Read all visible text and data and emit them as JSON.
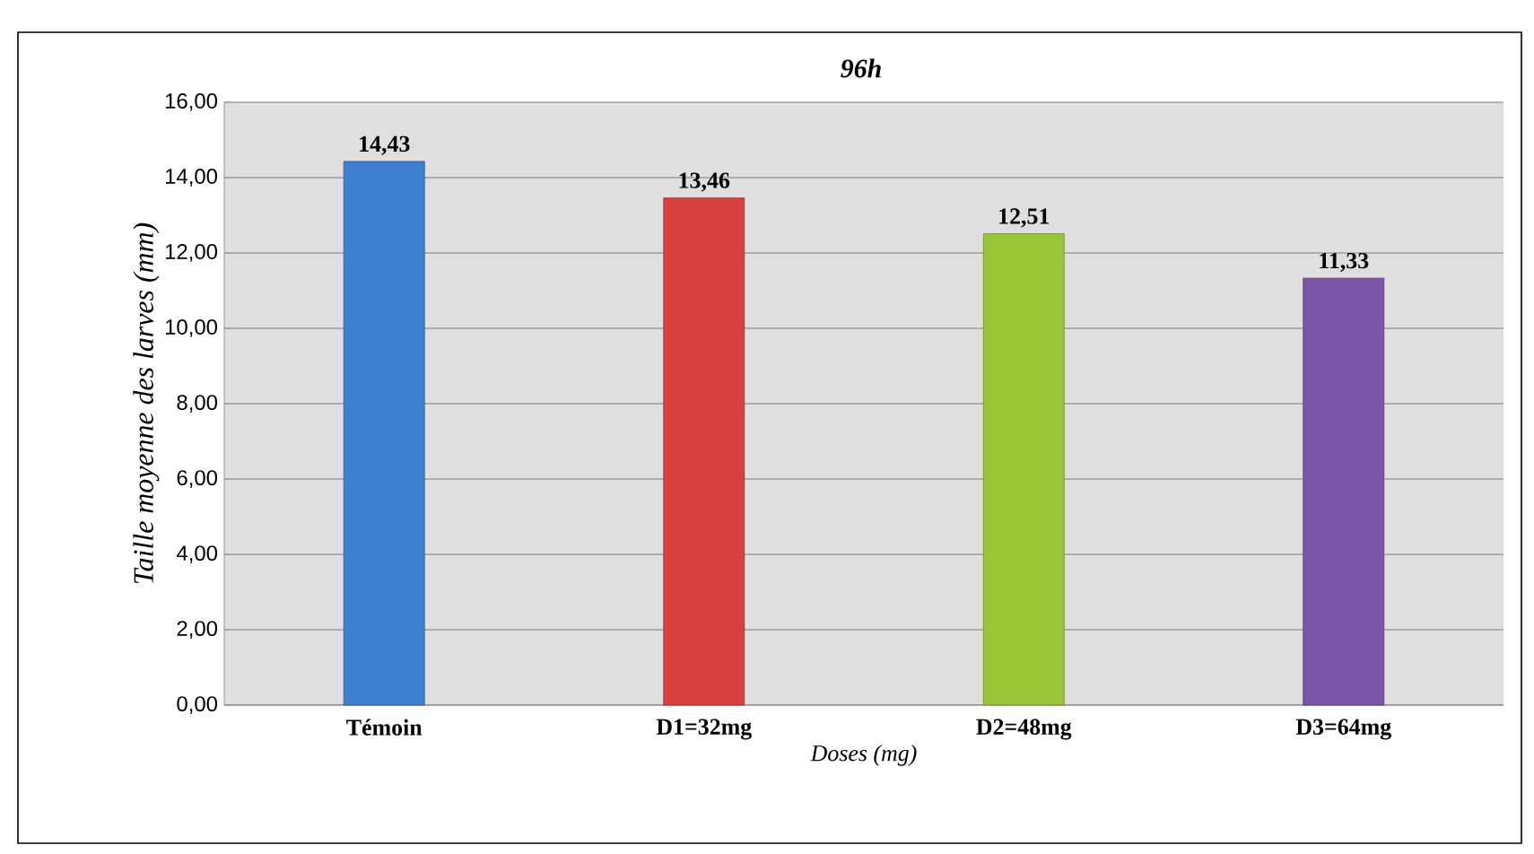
{
  "chart_data": {
    "type": "bar",
    "title": "96h",
    "xlabel": "Doses (mg)",
    "ylabel": "Taille moyenne des larves (mm)",
    "categories": [
      "Témoin",
      "D1=32mg",
      "D2=48mg",
      "D3=64mg"
    ],
    "values": [
      14.43,
      13.46,
      12.51,
      11.33
    ],
    "colors": [
      "#3f7fd0",
      "#d94040",
      "#9bc63a",
      "#7b55a8"
    ],
    "value_labels": [
      "14,43",
      "13,46",
      "12,51",
      "11,33"
    ],
    "ylim": [
      0,
      16
    ],
    "yticks": [
      {
        "value": 0,
        "label": "0,00"
      },
      {
        "value": 2,
        "label": "2,00"
      },
      {
        "value": 4,
        "label": "4,00"
      },
      {
        "value": 6,
        "label": "6,00"
      },
      {
        "value": 8,
        "label": "8,00"
      },
      {
        "value": 10,
        "label": "10,00"
      },
      {
        "value": 12,
        "label": "12,00"
      },
      {
        "value": 14,
        "label": "14,00"
      },
      {
        "value": 16,
        "label": "16,00"
      }
    ],
    "grid": "y"
  }
}
